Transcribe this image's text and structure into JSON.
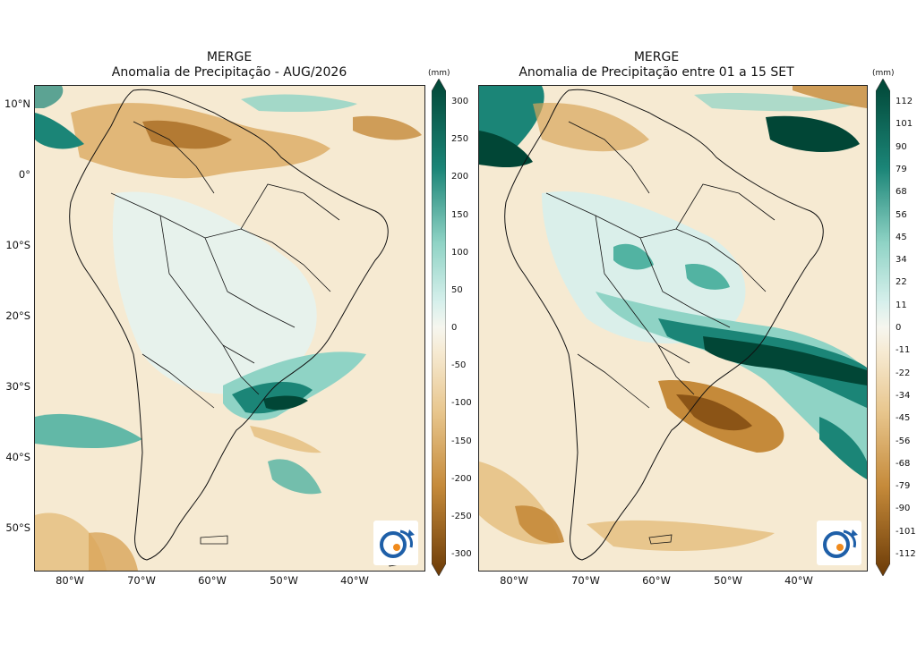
{
  "panels": [
    {
      "title": "MERGE",
      "subtitle": "Anomalia de Precipitação - AUG/2026",
      "colorbar": {
        "unit": "(mm)",
        "ticks": [
          "300",
          "250",
          "200",
          "150",
          "100",
          "50",
          "0",
          "-50",
          "-100",
          "-150",
          "-200",
          "-250",
          "-300"
        ]
      },
      "lat_labels": [
        "10°N",
        "0°",
        "10°S",
        "20°S",
        "30°S",
        "40°S",
        "50°S"
      ],
      "lon_labels": [
        "80°W",
        "70°W",
        "60°W",
        "50°W",
        "40°W"
      ],
      "logo_text": "INPE"
    },
    {
      "title": "MERGE",
      "subtitle": "Anomalia de Precipitação entre 01 a 15 SET",
      "colorbar": {
        "unit": "(mm)",
        "ticks": [
          "112",
          "101",
          "90",
          "79",
          "68",
          "56",
          "45",
          "34",
          "22",
          "11",
          "0",
          "-11",
          "-22",
          "-34",
          "-45",
          "-56",
          "-68",
          "-79",
          "-90",
          "-101",
          "-112"
        ]
      },
      "lon_labels": [
        "80°W",
        "70°W",
        "60°W",
        "50°W",
        "40°W"
      ],
      "logo_text": "INPE"
    }
  ],
  "colors": {
    "wet_strong": "#014636",
    "wet_mid": "#1b8577",
    "wet_light": "#8fd3c5",
    "wet_pale": "#d7f0ec",
    "neutral": "#f6ead2",
    "dry_light": "#e8c68d",
    "dry_mid": "#c58a3a",
    "dry_strong": "#6b3a06"
  }
}
